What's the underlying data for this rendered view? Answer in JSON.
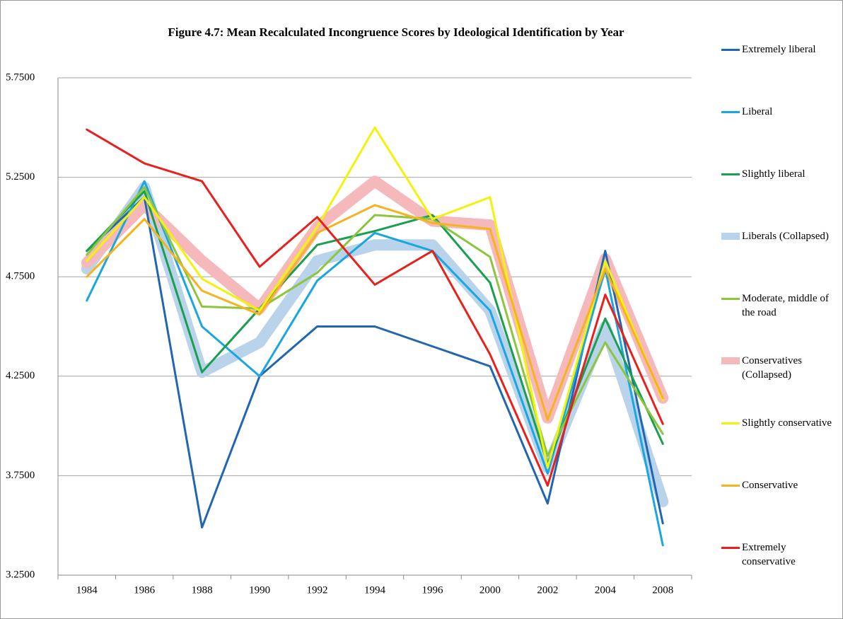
{
  "chart_data": {
    "type": "line",
    "title": "Figure 4.7: Mean Recalculated Incongruence Scores by Ideological Identification by Year",
    "categories": [
      "1984",
      "1986",
      "1988",
      "1990",
      "1992",
      "1994",
      "1996",
      "2000",
      "2002",
      "2004",
      "2008"
    ],
    "ylim": [
      3.25,
      5.75
    ],
    "yticks": [
      {
        "value": 3.25,
        "label": "3.2500"
      },
      {
        "value": 3.75,
        "label": "3.7500"
      },
      {
        "value": 4.25,
        "label": "4.2500"
      },
      {
        "value": 4.75,
        "label": "4.7500"
      },
      {
        "value": 5.25,
        "label": "5.2500"
      },
      {
        "value": 5.75,
        "label": "5.7500"
      }
    ],
    "grid": true,
    "legend": "right",
    "series": [
      {
        "name": "Extremely liberal",
        "color": "#2166b0",
        "line_width": 3,
        "values": [
          4.88,
          5.15,
          3.49,
          4.25,
          4.5,
          4.5,
          4.4,
          4.3,
          3.61,
          4.88,
          3.51
        ]
      },
      {
        "name": "Liberal",
        "color": "#1aa6e0",
        "line_width": 3,
        "values": [
          4.63,
          5.23,
          4.5,
          4.25,
          4.73,
          4.97,
          4.88,
          4.58,
          3.76,
          4.79,
          3.4
        ]
      },
      {
        "name": "Slightly liberal",
        "color": "#1a9e50",
        "line_width": 3,
        "values": [
          4.88,
          5.18,
          4.27,
          4.59,
          4.91,
          4.98,
          5.06,
          4.72,
          3.81,
          4.54,
          3.91
        ]
      },
      {
        "name": "Liberals (Collapsed)",
        "color": "#b9d3ea",
        "line_width": 16,
        "values": [
          4.79,
          5.2,
          4.27,
          4.42,
          4.83,
          4.91,
          4.91,
          4.58,
          3.79,
          4.5,
          3.62
        ]
      },
      {
        "name": "Moderate, middle of the road",
        "color": "#8cc63f",
        "line_width": 3,
        "values": [
          4.86,
          5.2,
          4.6,
          4.59,
          4.77,
          5.06,
          5.04,
          4.85,
          3.85,
          4.42,
          3.96
        ]
      },
      {
        "name": "Conservatives (Collapsed)",
        "color": "#f6b9bb",
        "line_width": 16,
        "values": [
          4.82,
          5.11,
          4.83,
          4.59,
          5.0,
          5.23,
          5.03,
          5.01,
          4.04,
          4.84,
          4.14
        ]
      },
      {
        "name": "Slightly conservative",
        "color": "#f2f20c",
        "line_width": 3,
        "values": [
          4.83,
          5.15,
          4.74,
          4.58,
          5.0,
          5.5,
          5.04,
          5.15,
          3.79,
          4.83,
          4.13
        ]
      },
      {
        "name": "Conservative",
        "color": "#f5b41d",
        "line_width": 3,
        "values": [
          4.75,
          5.04,
          4.68,
          4.56,
          4.97,
          5.11,
          5.02,
          4.99,
          4.03,
          4.79,
          4.14
        ]
      },
      {
        "name": "Extremely conservative",
        "color": "#e8201e",
        "line_width": 3,
        "values": [
          5.49,
          5.32,
          5.23,
          4.8,
          5.05,
          4.71,
          4.88,
          4.36,
          3.7,
          4.66,
          4.01
        ]
      }
    ]
  }
}
